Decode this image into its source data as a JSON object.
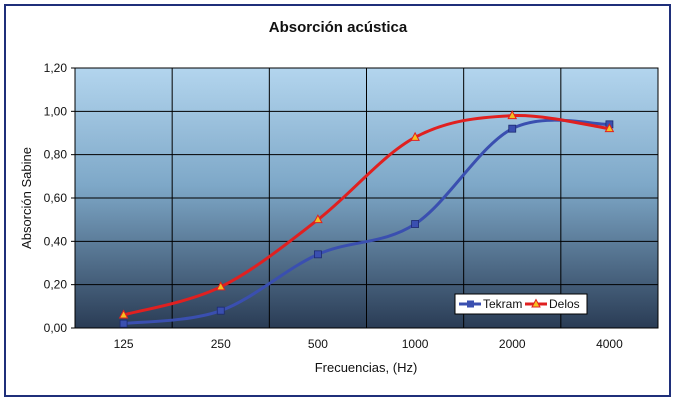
{
  "chart_data": {
    "type": "line",
    "title": "Absorción acústica",
    "xlabel": "Frecuencias, (Hz)",
    "ylabel": "Absorción Sabine",
    "categories": [
      "125",
      "250",
      "500",
      "1000",
      "2000",
      "4000"
    ],
    "ylim": [
      0,
      1.2
    ],
    "yticks": [
      "0,00",
      "0,20",
      "0,40",
      "0,60",
      "0,80",
      "1,00",
      "1,20"
    ],
    "grid": true,
    "legend_position": "bottom-right",
    "series": [
      {
        "name": "Tekram",
        "color": "#3a4fb0",
        "marker": "square",
        "values": [
          0.02,
          0.08,
          0.34,
          0.48,
          0.92,
          0.94
        ]
      },
      {
        "name": "Delos",
        "color": "#e02020",
        "marker": "triangle",
        "values": [
          0.06,
          0.19,
          0.5,
          0.88,
          0.98,
          0.92
        ]
      }
    ]
  }
}
